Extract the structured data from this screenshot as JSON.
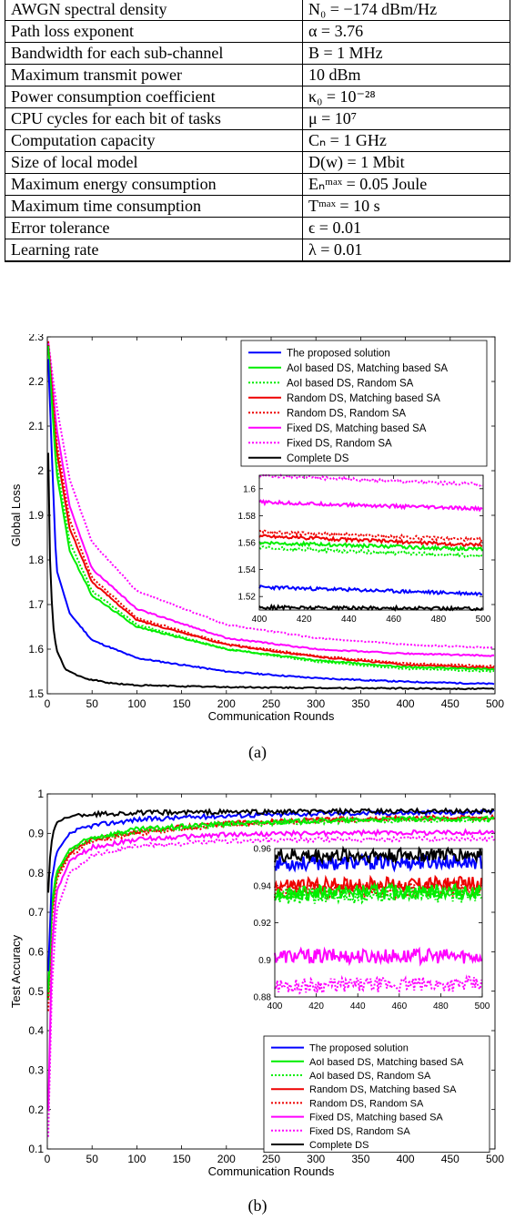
{
  "table": {
    "rows": [
      [
        "AWGN spectral density",
        "N₀ = −174 dBm/Hz"
      ],
      [
        "Path loss exponent",
        "α = 3.76"
      ],
      [
        "Bandwidth for each sub-channel",
        "B = 1 MHz"
      ],
      [
        "Maximum transmit power",
        "10 dBm"
      ],
      [
        "Power consumption coefficient",
        "κ₀ = 10⁻²⁸"
      ],
      [
        "CPU cycles for each bit of tasks",
        "μ = 10⁷"
      ],
      [
        "Computation capacity",
        "Cₙ = 1 GHz"
      ],
      [
        "Size of local model",
        "D(w) = 1 Mbit"
      ],
      [
        "Maximum energy consumption",
        "Eₙᵐᵃˣ = 0.05 Joule"
      ],
      [
        "Maximum time consumption",
        "Tᵐᵃˣ = 10 s"
      ],
      [
        "Error tolerance",
        "ϵ = 0.01"
      ],
      [
        "Learning rate",
        "λ = 0.01"
      ]
    ]
  },
  "captions": {
    "a": "(a)",
    "b": "(b)"
  },
  "legend": [
    {
      "name": "The proposed solution",
      "color": "#0000ff",
      "dash": false
    },
    {
      "name": "AoI based DS, Matching based SA",
      "color": "#00ee00",
      "dash": false
    },
    {
      "name": "AoI based DS, Random SA",
      "color": "#00ee00",
      "dash": true
    },
    {
      "name": "Random DS, Matching based SA",
      "color": "#ee0000",
      "dash": false
    },
    {
      "name": "Random DS, Random SA",
      "color": "#ee0000",
      "dash": true
    },
    {
      "name": "Fixed DS, Matching based SA",
      "color": "#ff00ff",
      "dash": false
    },
    {
      "name": "Fixed DS, Random SA",
      "color": "#ff00ff",
      "dash": true
    },
    {
      "name": "Complete DS",
      "color": "#000000",
      "dash": false
    }
  ],
  "chart_data": [
    {
      "type": "line",
      "xlabel": "Communication Rounds",
      "ylabel": "Global Loss",
      "xlim": [
        0,
        500
      ],
      "ylim": [
        1.5,
        2.3
      ],
      "xticks": [
        "0",
        "50",
        "100",
        "150",
        "200",
        "250",
        "300",
        "350",
        "400",
        "450",
        "500"
      ],
      "yticks": [
        "1.5",
        "1.6",
        "1.7",
        "1.8",
        "1.9",
        "2",
        "2.1",
        "2.2",
        "2.3"
      ],
      "legend_position": "top-right",
      "series": [
        {
          "name": "The proposed solution",
          "x": [
            1,
            10,
            25,
            50,
            100,
            200,
            300,
            400,
            500
          ],
          "y": [
            2.25,
            1.78,
            1.68,
            1.62,
            1.58,
            1.55,
            1.535,
            1.527,
            1.522
          ]
        },
        {
          "name": "AoI based DS, Matching based SA",
          "x": [
            1,
            10,
            25,
            50,
            100,
            200,
            300,
            400,
            500
          ],
          "y": [
            2.28,
            2.0,
            1.82,
            1.72,
            1.65,
            1.6,
            1.575,
            1.56,
            1.555
          ]
        },
        {
          "name": "AoI based DS, Random SA",
          "x": [
            1,
            10,
            25,
            50,
            100,
            200,
            300,
            400,
            500
          ],
          "y": [
            2.28,
            2.02,
            1.84,
            1.73,
            1.655,
            1.6,
            1.572,
            1.556,
            1.55
          ]
        },
        {
          "name": "Random DS, Matching based SA",
          "x": [
            1,
            10,
            25,
            50,
            100,
            200,
            300,
            400,
            500
          ],
          "y": [
            2.28,
            2.05,
            1.87,
            1.75,
            1.665,
            1.61,
            1.583,
            1.565,
            1.558
          ]
        },
        {
          "name": "Random DS, Random SA",
          "x": [
            1,
            10,
            25,
            50,
            100,
            200,
            300,
            400,
            500
          ],
          "y": [
            2.29,
            2.07,
            1.89,
            1.76,
            1.67,
            1.612,
            1.585,
            1.568,
            1.562
          ]
        },
        {
          "name": "Fixed DS, Matching based SA",
          "x": [
            1,
            10,
            25,
            50,
            100,
            200,
            300,
            400,
            500
          ],
          "y": [
            2.29,
            2.1,
            1.92,
            1.78,
            1.69,
            1.625,
            1.6,
            1.59,
            1.585
          ]
        },
        {
          "name": "Fixed DS, Random SA",
          "x": [
            1,
            10,
            25,
            50,
            100,
            200,
            300,
            400,
            500
          ],
          "y": [
            2.29,
            2.15,
            1.98,
            1.84,
            1.73,
            1.655,
            1.625,
            1.61,
            1.603
          ]
        },
        {
          "name": "Complete DS",
          "x": [
            1,
            3,
            6,
            10,
            20,
            40,
            70,
            100,
            200,
            300,
            400,
            500
          ],
          "y": [
            2.04,
            1.8,
            1.66,
            1.6,
            1.555,
            1.535,
            1.524,
            1.519,
            1.515,
            1.513,
            1.512,
            1.511
          ]
        }
      ],
      "inset": {
        "xlim": [
          400,
          500
        ],
        "ylim": [
          1.51,
          1.61
        ],
        "xticks": [
          "400",
          "420",
          "440",
          "460",
          "480",
          "500"
        ],
        "yticks": [
          "1.52",
          "1.54",
          "1.56",
          "1.58",
          "1.6"
        ]
      }
    },
    {
      "type": "line",
      "xlabel": "Communication Rounds",
      "ylabel": "Test Accuracy",
      "xlim": [
        0,
        500
      ],
      "ylim": [
        0.1,
        1
      ],
      "xticks": [
        "0",
        "50",
        "100",
        "150",
        "200",
        "250",
        "300",
        "350",
        "400",
        "450",
        "500"
      ],
      "yticks": [
        "0.1",
        "0.2",
        "0.3",
        "0.4",
        "0.5",
        "0.6",
        "0.7",
        "0.8",
        "0.9",
        "1"
      ],
      "legend_position": "bottom-right",
      "series": [
        {
          "name": "The proposed solution",
          "x": [
            1,
            5,
            10,
            25,
            50,
            100,
            200,
            300,
            400,
            500
          ],
          "y": [
            0.55,
            0.78,
            0.85,
            0.9,
            0.92,
            0.935,
            0.945,
            0.95,
            0.952,
            0.953
          ]
        },
        {
          "name": "AoI based DS, Matching based SA",
          "x": [
            1,
            5,
            10,
            25,
            50,
            100,
            200,
            300,
            400,
            500
          ],
          "y": [
            0.5,
            0.72,
            0.8,
            0.86,
            0.89,
            0.91,
            0.925,
            0.932,
            0.936,
            0.937
          ]
        },
        {
          "name": "AoI based DS, Random SA",
          "x": [
            1,
            5,
            10,
            25,
            50,
            100,
            200,
            300,
            400,
            500
          ],
          "y": [
            0.48,
            0.7,
            0.79,
            0.855,
            0.885,
            0.905,
            0.922,
            0.93,
            0.934,
            0.935
          ]
        },
        {
          "name": "Random DS, Matching based SA",
          "x": [
            1,
            5,
            10,
            25,
            50,
            100,
            200,
            300,
            400,
            500
          ],
          "y": [
            0.48,
            0.7,
            0.79,
            0.85,
            0.885,
            0.905,
            0.925,
            0.934,
            0.94,
            0.941
          ]
        },
        {
          "name": "Random DS, Random SA",
          "x": [
            1,
            5,
            10,
            25,
            50,
            100,
            200,
            300,
            400,
            500
          ],
          "y": [
            0.45,
            0.68,
            0.78,
            0.845,
            0.88,
            0.9,
            0.922,
            0.932,
            0.937,
            0.938
          ]
        },
        {
          "name": "Fixed DS, Matching based SA",
          "x": [
            1,
            5,
            10,
            25,
            50,
            100,
            200,
            300,
            400,
            500
          ],
          "y": [
            0.2,
            0.6,
            0.75,
            0.83,
            0.865,
            0.885,
            0.897,
            0.9,
            0.902,
            0.902
          ]
        },
        {
          "name": "Fixed DS, Random SA",
          "x": [
            1,
            5,
            10,
            25,
            50,
            100,
            200,
            300,
            400,
            500
          ],
          "y": [
            0.13,
            0.5,
            0.7,
            0.8,
            0.845,
            0.868,
            0.88,
            0.884,
            0.886,
            0.887
          ]
        },
        {
          "name": "Complete DS",
          "x": [
            1,
            3,
            6,
            10,
            20,
            40,
            100,
            200,
            300,
            400,
            500
          ],
          "y": [
            0.75,
            0.84,
            0.9,
            0.925,
            0.94,
            0.948,
            0.952,
            0.954,
            0.955,
            0.956,
            0.957
          ]
        }
      ],
      "inset": {
        "xlim": [
          400,
          500
        ],
        "ylim": [
          0.88,
          0.96
        ],
        "xticks": [
          "400",
          "420",
          "440",
          "460",
          "480",
          "500"
        ],
        "yticks": [
          "0.88",
          "0.9",
          "0.92",
          "0.94",
          "0.96"
        ]
      }
    }
  ]
}
